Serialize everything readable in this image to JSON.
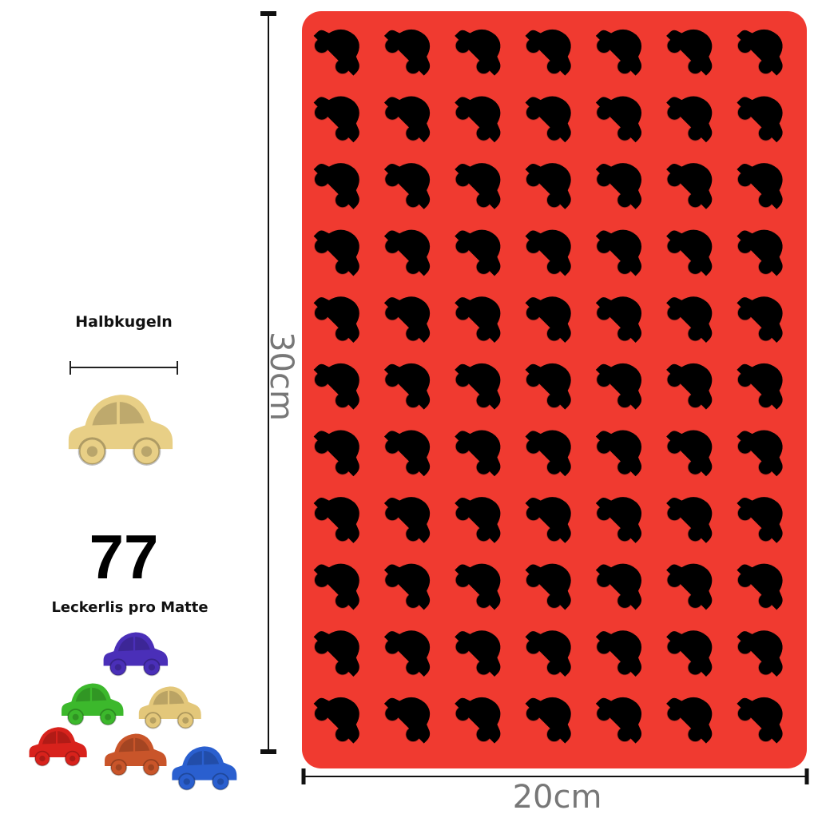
{
  "product": {
    "shape_label": "Halbkugeln",
    "count": "77",
    "count_label": "Leckerlis pro Matte",
    "height_label": "30cm",
    "width_label": "20cm"
  },
  "mold": {
    "rows": 11,
    "columns": 7,
    "color": "#f03a30",
    "cavity_color": "#8a1a14"
  },
  "sample_cars": [
    {
      "color": "#4a2fb8"
    },
    {
      "color": "#3cb82c"
    },
    {
      "color": "#e3c77a"
    },
    {
      "color": "#d8221c"
    },
    {
      "color": "#c9552a"
    },
    {
      "color": "#2a5fcf"
    }
  ],
  "feature_car_color": "#e8cf86"
}
